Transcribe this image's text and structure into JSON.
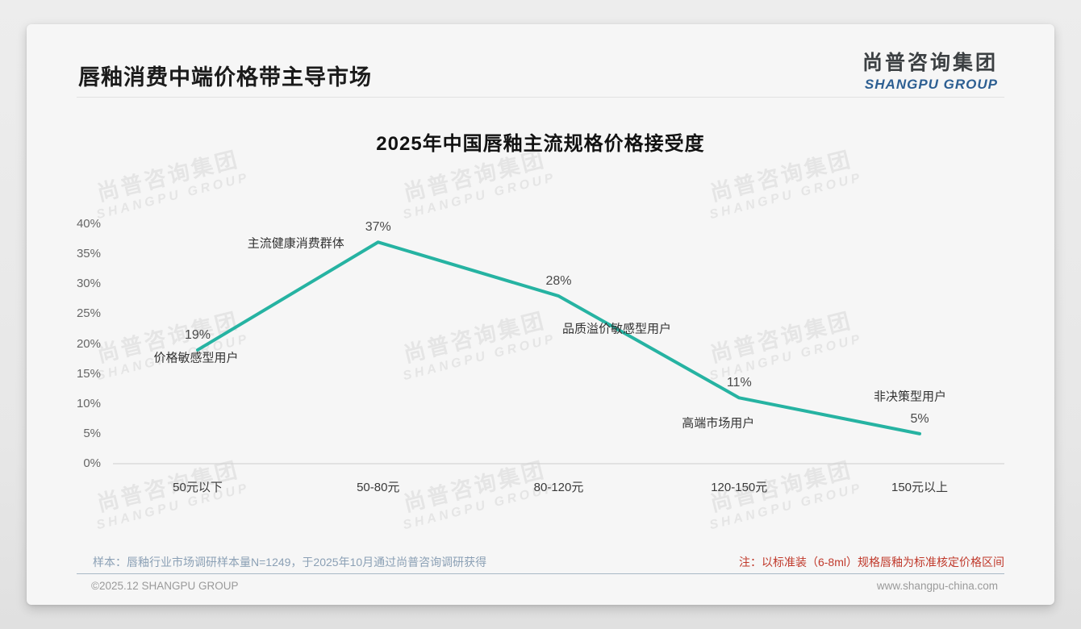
{
  "page": {
    "title": "唇釉消费中端价格带主导市场",
    "logo": {
      "cn": "尚普咨询集团",
      "en": "SHANGPU GROUP"
    },
    "watermark": {
      "cn": "尚普咨询集团",
      "en": "SHANGPU GROUP"
    },
    "footer": {
      "sample_note": "样本：唇釉行业市场调研样本量N=1249，于2025年10月通过尚普咨询调研获得",
      "price_note": "注：以标准装（6-8ml）规格唇釉为标准核定价格区间",
      "copyright": "©2025.12 SHANGPU GROUP",
      "website": "www.shangpu-china.com"
    },
    "colors": {
      "line": "#26b3a2",
      "axis_baseline": "#cfcfcf",
      "price_note": "#c0392b",
      "sample_note": "#8ba0b5",
      "logo_blue": "#2d5f92"
    }
  },
  "chart_data": {
    "type": "line",
    "title": "2025年中国唇釉主流规格价格接受度",
    "categories": [
      "50元以下",
      "50-80元",
      "80-120元",
      "120-150元",
      "150元以上"
    ],
    "values": [
      19,
      37,
      28,
      11,
      5
    ],
    "value_labels": [
      "19%",
      "37%",
      "28%",
      "11%",
      "5%"
    ],
    "point_annotations": [
      "价格敏感型用户",
      "主流健康消费群体",
      "品质溢价敏感型用户",
      "高端市场用户",
      "非决策型用户"
    ],
    "xlabel": "",
    "ylabel": "",
    "ylim": [
      0,
      40
    ],
    "yticks": [
      0,
      5,
      10,
      15,
      20,
      25,
      30,
      35,
      40
    ],
    "ytick_labels": [
      "0%",
      "5%",
      "10%",
      "15%",
      "20%",
      "25%",
      "30%",
      "35%",
      "40%"
    ],
    "grid": false,
    "legend": null,
    "line_color": "#26b3a2",
    "markers": false
  }
}
